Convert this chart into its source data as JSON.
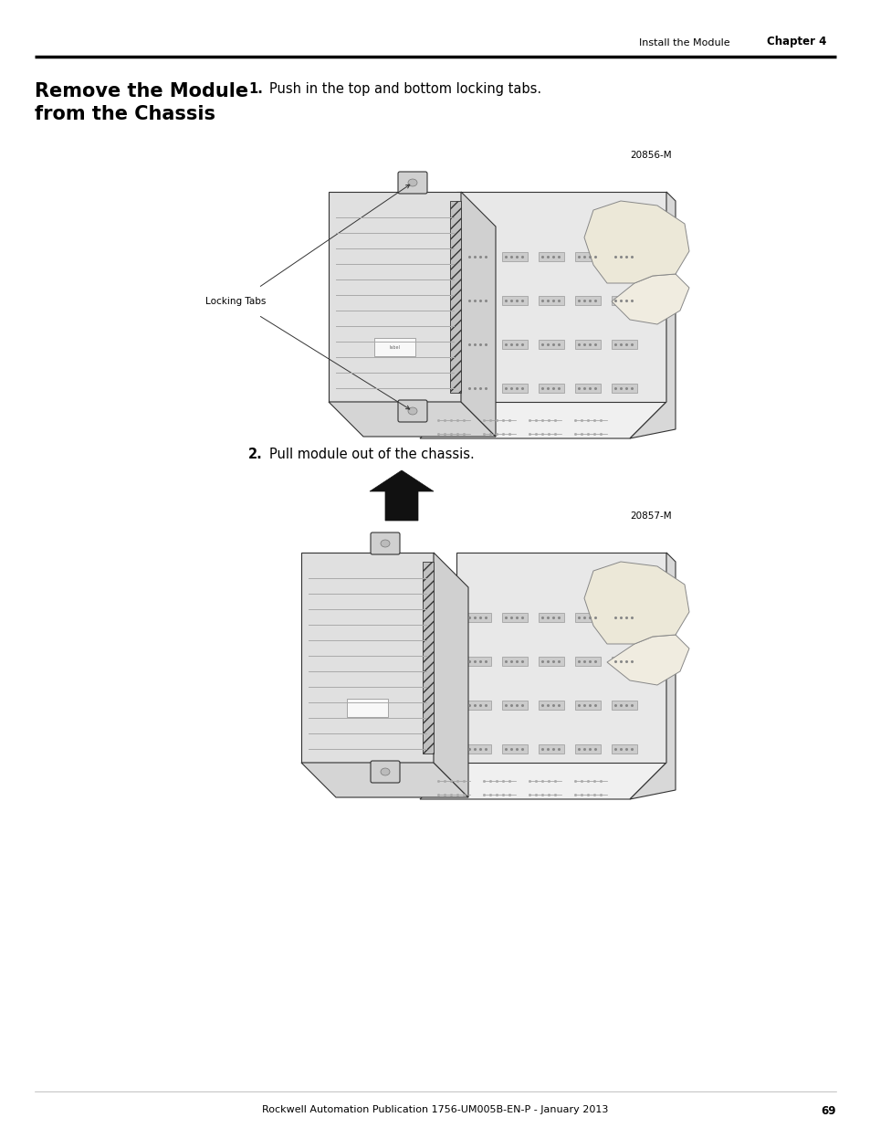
{
  "page_bg": "#ffffff",
  "top_header_right": "Install the Module",
  "top_header_chapter": "Chapter 4",
  "top_line_color": "#000000",
  "section_title_line1": "Remove the Module",
  "section_title_line2": "from the Chassis",
  "step1_num": "1.",
  "step1_text": "Push in the top and bottom locking tabs.",
  "step2_num": "2.",
  "step2_text": "Pull module out of the chassis.",
  "img1_label": "Locking Tabs",
  "img1_code": "20856-M",
  "img2_code": "20857-M",
  "footer_text": "Rockwell Automation Publication 1756-UM005B-EN-P - January 2013",
  "footer_page": "69",
  "text_color": "#000000",
  "line_color": "#333333",
  "light_gray": "#cccccc",
  "mid_gray": "#999999",
  "dark_gray": "#555555",
  "hatch_color": "#888888"
}
